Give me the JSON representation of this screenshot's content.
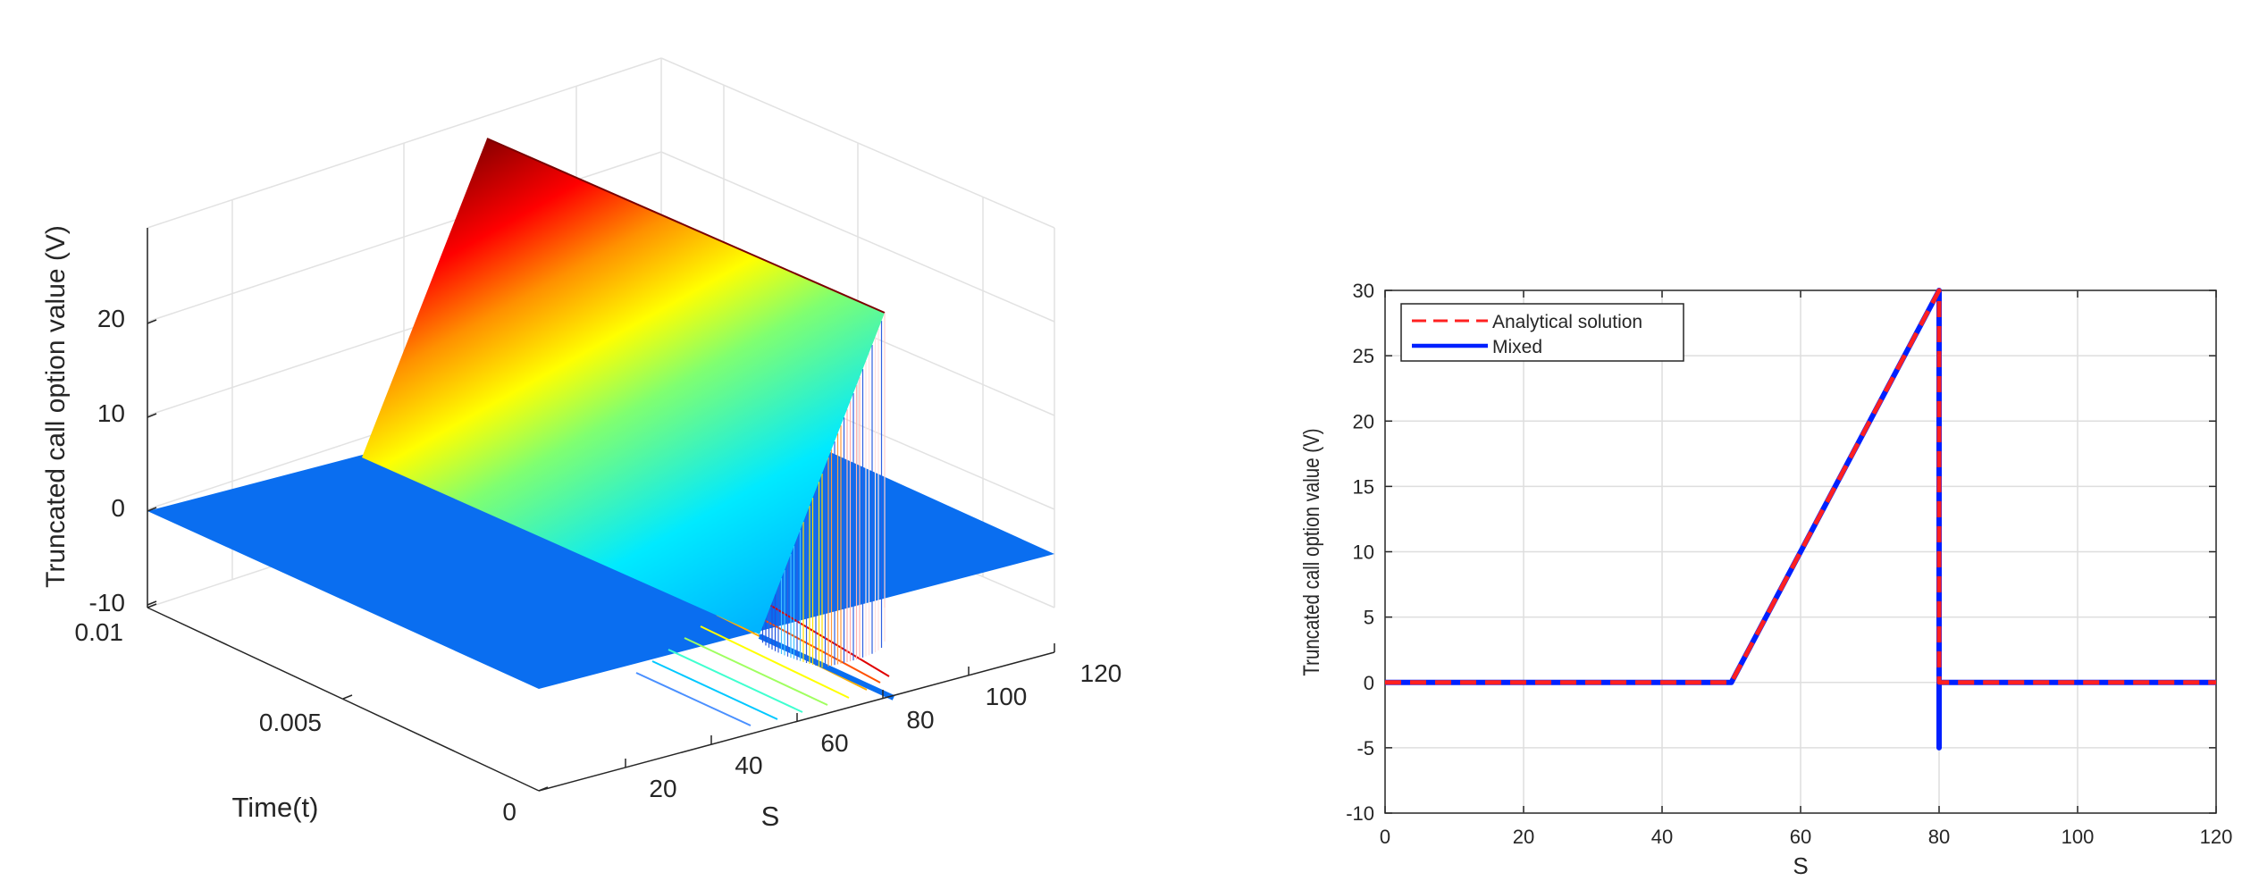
{
  "chart_data": [
    {
      "type": "surface3d",
      "zlabel": "Truncated call option value (V)",
      "xlabel": "S",
      "ylabel": "Time(t)",
      "x_ticks": [
        "20",
        "40",
        "60",
        "80",
        "100",
        "120"
      ],
      "y_ticks": [
        "0",
        "0.005",
        "0.01"
      ],
      "z_ticks": [
        "-10",
        "0",
        "10",
        "20"
      ],
      "xlim": [
        0,
        120
      ],
      "ylim": [
        0,
        0.01
      ],
      "zlim": [
        -10,
        30
      ],
      "surface": {
        "strike": 50,
        "barrier": 80,
        "payoff": "max(S-50,0) for S<=80, 0 otherwise",
        "max_value": 30,
        "flat_value": 0,
        "flat_color": "#0a6ef0"
      },
      "colormap": [
        "#0000a0",
        "#0060ff",
        "#00e8ff",
        "#7fff7f",
        "#ffff00",
        "#ff9000",
        "#ff0000",
        "#800000"
      ]
    },
    {
      "type": "line",
      "xlabel": "S",
      "ylabel": "Truncated call option value (V)",
      "xlim": [
        0,
        120
      ],
      "ylim": [
        -10,
        30
      ],
      "x_ticks": [
        "0",
        "20",
        "40",
        "60",
        "80",
        "100",
        "120"
      ],
      "y_ticks": [
        "-10",
        "-5",
        "0",
        "5",
        "10",
        "15",
        "20",
        "25",
        "30"
      ],
      "grid": true,
      "legend_position": "top-left",
      "series": [
        {
          "name": "Analytical solution",
          "style": "dashed",
          "color": "#ff2020",
          "x": [
            0,
            50,
            80,
            80,
            120
          ],
          "y": [
            0,
            0,
            30,
            0,
            0
          ]
        },
        {
          "name": "Mixed",
          "style": "solid",
          "color": "#0020ff",
          "x": [
            0,
            50,
            80,
            80,
            80,
            80,
            120
          ],
          "y": [
            0,
            0,
            30,
            0,
            -5,
            0,
            0
          ]
        }
      ]
    }
  ]
}
